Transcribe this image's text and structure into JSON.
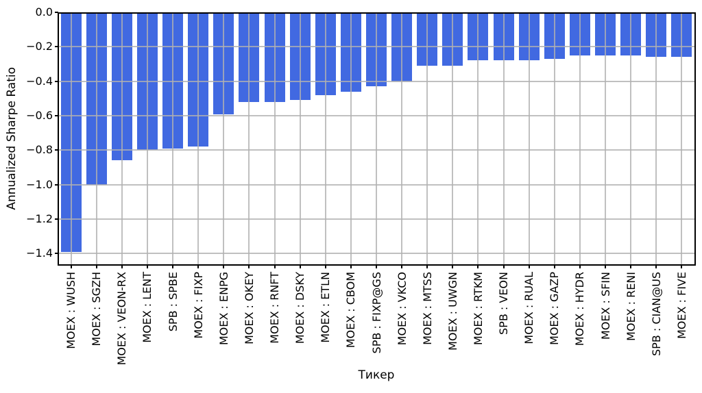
{
  "chart_data": {
    "type": "bar",
    "title": "",
    "xlabel": "Тикер",
    "ylabel": "Annualized Sharpe Ratio",
    "categories": [
      "MOEX : WUSH",
      "MOEX : SGZH",
      "MOEX : VEON-RX",
      "MOEX : LENT",
      "SPB : SPBE",
      "MOEX : FIXP",
      "MOEX : ENPG",
      "MOEX : OKEY",
      "MOEX : RNFT",
      "MOEX : DSKY",
      "MOEX : ETLN",
      "MOEX : CBOM",
      "SPB : FIXP@GS",
      "MOEX : VKCO",
      "MOEX : MTSS",
      "MOEX : UWGN",
      "MOEX : RTKM",
      "SPB : VEON",
      "MOEX : RUAL",
      "MOEX : GAZP",
      "MOEX : HYDR",
      "MOEX : SFIN",
      "MOEX : RENI",
      "SPB : CIAN@US",
      "MOEX : FIVE"
    ],
    "values": [
      -1.39,
      -1.0,
      -0.86,
      -0.8,
      -0.79,
      -0.78,
      -0.59,
      -0.52,
      -0.52,
      -0.51,
      -0.48,
      -0.46,
      -0.43,
      -0.4,
      -0.31,
      -0.31,
      -0.28,
      -0.28,
      -0.28,
      -0.27,
      -0.25,
      -0.25,
      -0.25,
      -0.26,
      -0.26
    ],
    "yticks": [
      0.0,
      -0.2,
      -0.4,
      -0.6,
      -0.8,
      -1.0,
      -1.2,
      -1.4
    ],
    "ytick_labels": [
      "0.0",
      "−0.2",
      "−0.4",
      "−0.6",
      "−0.8",
      "−1.0",
      "−1.2",
      "−1.4"
    ],
    "ylim": [
      -1.462,
      0
    ],
    "grid": true,
    "legend": false,
    "bar_color": "#4169e1",
    "grid_color": "#b0b0b0",
    "axis_color": "#000000"
  }
}
